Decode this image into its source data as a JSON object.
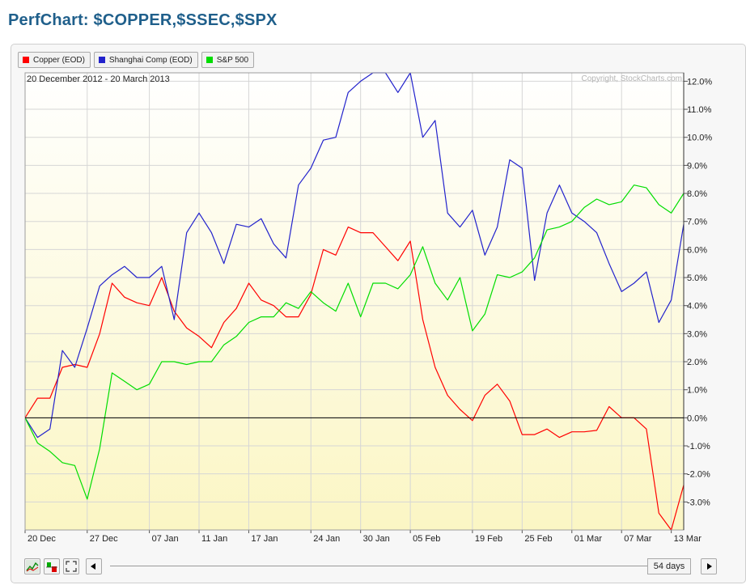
{
  "page": {
    "title": "PerfChart: $COPPER,$SSEC,$SPX"
  },
  "legend": [
    {
      "label": "Copper (EOD)",
      "color": "#ff0000"
    },
    {
      "label": "Shanghai Comp (EOD)",
      "color": "#2222cc"
    },
    {
      "label": "S&P 500",
      "color": "#00dd00"
    }
  ],
  "chart": {
    "date_range": "20 December 2012 - 20 March 2013",
    "copyright": "Copyright, StockCharts.com"
  },
  "controls": {
    "days": "54 days",
    "scroll_left_icon": "triangle-left-icon",
    "scroll_right_icon": "triangle-right-icon",
    "perf_icon": "perf-chart-icon",
    "histogram_icon": "histogram-icon",
    "fullscreen_icon": "fullscreen-icon"
  },
  "chart_data": {
    "type": "line",
    "date_range": "20 December 2012 - 20 March 2013",
    "ylim": [
      -4.0,
      12.3
    ],
    "y_ticks": [
      "12.0%",
      "11.0%",
      "10.0%",
      "9.0%",
      "8.0%",
      "7.0%",
      "6.0%",
      "5.0%",
      "4.0%",
      "3.0%",
      "2.0%",
      "1.0%",
      "0.0%",
      "-1.0%",
      "-2.0%",
      "-3.0%"
    ],
    "y_tick_values": [
      12,
      11,
      10,
      9,
      8,
      7,
      6,
      5,
      4,
      3,
      2,
      1,
      0,
      -1,
      -2,
      -3
    ],
    "x_ticks": [
      "20 Dec",
      "27 Dec",
      "07 Jan",
      "11 Jan",
      "17 Jan",
      "24 Jan",
      "30 Jan",
      "05 Feb",
      "19 Feb",
      "25 Feb",
      "01 Mar",
      "07 Mar",
      "13 Mar"
    ],
    "x_tick_index": [
      0,
      5,
      10,
      14,
      18,
      23,
      27,
      31,
      36,
      40,
      44,
      48,
      52
    ],
    "grid": true,
    "zero_line": true,
    "series": [
      {
        "name": "Copper (EOD)",
        "color": "#ff0000",
        "values": [
          0,
          0.7,
          0.7,
          1.8,
          1.9,
          1.8,
          3.0,
          4.8,
          4.3,
          4.1,
          4.0,
          5.0,
          3.8,
          3.2,
          2.9,
          2.5,
          3.4,
          3.9,
          4.8,
          4.2,
          4.0,
          3.6,
          3.6,
          4.4,
          6.0,
          5.8,
          6.8,
          6.6,
          6.6,
          6.1,
          5.6,
          6.3,
          3.5,
          1.8,
          0.8,
          0.3,
          -0.1,
          0.8,
          1.2,
          0.6,
          -0.6,
          -0.6,
          -0.4,
          -0.7,
          -0.5,
          -0.5,
          -0.45,
          0.4,
          0.0,
          0.0,
          -0.4,
          -3.4,
          -4.0,
          -2.4
        ]
      },
      {
        "name": "Shanghai Comp (EOD)",
        "color": "#2222cc",
        "values": [
          0,
          -0.7,
          -0.4,
          2.4,
          1.8,
          3.2,
          4.7,
          5.1,
          5.4,
          5.0,
          5.0,
          5.4,
          3.5,
          6.6,
          7.3,
          6.6,
          5.5,
          6.9,
          6.8,
          7.1,
          6.2,
          5.7,
          8.3,
          8.9,
          9.9,
          10.0,
          11.6,
          12.0,
          12.3,
          12.3,
          11.6,
          12.3,
          10.0,
          10.6,
          7.3,
          6.8,
          7.4,
          5.8,
          6.8,
          9.2,
          8.9,
          4.9,
          7.3,
          8.3,
          7.3,
          7.0,
          6.6,
          5.5,
          4.5,
          4.8,
          5.2,
          3.4,
          4.2,
          6.9
        ]
      },
      {
        "name": "S&P 500",
        "color": "#00dd00",
        "values": [
          0,
          -0.9,
          -1.2,
          -1.6,
          -1.7,
          -2.9,
          -1.1,
          1.6,
          1.3,
          1.0,
          1.2,
          2.0,
          2.0,
          1.9,
          2.0,
          2.0,
          2.6,
          2.9,
          3.4,
          3.6,
          3.6,
          4.1,
          3.9,
          4.5,
          4.1,
          3.8,
          4.8,
          3.6,
          4.8,
          4.8,
          4.6,
          5.1,
          6.1,
          4.8,
          4.2,
          5.0,
          3.1,
          3.7,
          5.1,
          5.0,
          5.2,
          5.7,
          6.7,
          6.8,
          7.0,
          7.5,
          7.8,
          7.6,
          7.7,
          8.3,
          8.2,
          7.6,
          7.3,
          8.0
        ]
      }
    ]
  }
}
